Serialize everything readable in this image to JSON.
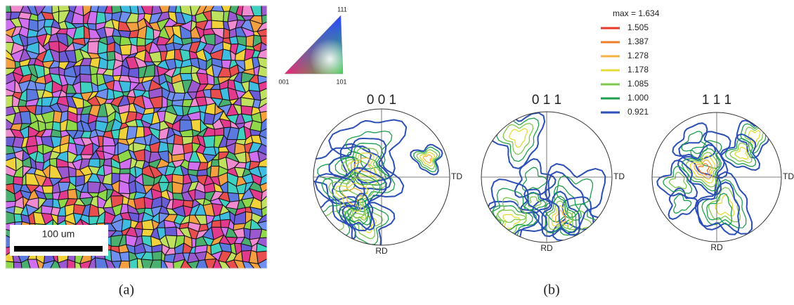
{
  "map": {
    "scale_bar": "100 um"
  },
  "key": {
    "top": "111",
    "left": "001",
    "right": "101"
  },
  "legend": {
    "title": "max = 1.634",
    "entries": [
      {
        "label": "1.505",
        "color": "#e8392a"
      },
      {
        "label": "1.387",
        "color": "#f07f2a"
      },
      {
        "label": "1.278",
        "color": "#f5b342"
      },
      {
        "label": "1.178",
        "color": "#e3dc3a"
      },
      {
        "label": "1.085",
        "color": "#7dc84a"
      },
      {
        "label": "1.000",
        "color": "#1e9e4e"
      },
      {
        "label": "0.921",
        "color": "#2b4fb4"
      }
    ]
  },
  "pole_figures": [
    {
      "title": "0 0 1",
      "td": "TD",
      "rd": "RD"
    },
    {
      "title": "0 1 1",
      "td": "TD",
      "rd": "RD"
    },
    {
      "title": "1 1 1",
      "td": "TD",
      "rd": "RD"
    }
  ],
  "captions": [
    "(a)",
    "(b)"
  ]
}
